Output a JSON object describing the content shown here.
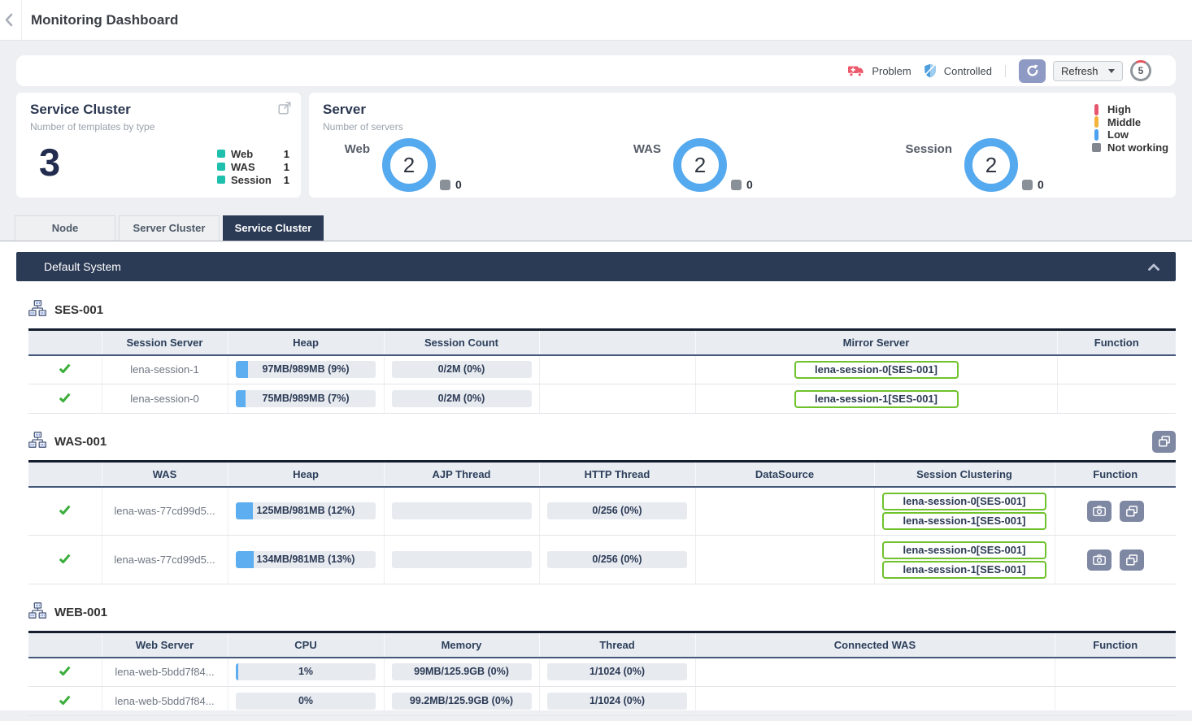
{
  "header": {
    "title": "Monitoring Dashboard"
  },
  "toolbar": {
    "problem_label": "Problem",
    "controlled_label": "Controlled",
    "refresh_label": "Refresh",
    "countdown": "5"
  },
  "service_cluster_card": {
    "title": "Service Cluster",
    "subtitle": "Number of templates by type",
    "total": "3",
    "accent": "#1fbfae",
    "legend": [
      {
        "label": "Web",
        "value": "1"
      },
      {
        "label": "WAS",
        "value": "1"
      },
      {
        "label": "Session",
        "value": "1"
      }
    ]
  },
  "server_card": {
    "title": "Server",
    "subtitle": "Number of servers",
    "gauges": [
      {
        "label": "Web",
        "value": "2",
        "not_working": "0"
      },
      {
        "label": "WAS",
        "value": "2",
        "not_working": "0"
      },
      {
        "label": "Session",
        "value": "2",
        "not_working": "0"
      }
    ],
    "legend": [
      {
        "label": "High",
        "color": "#e8566e"
      },
      {
        "label": "Middle",
        "color": "#f3b23a"
      },
      {
        "label": "Low",
        "color": "#4da2f0"
      },
      {
        "label": "Not working",
        "color": "#82878f"
      }
    ]
  },
  "tabs": [
    {
      "label": "Node",
      "active": false
    },
    {
      "label": "Server Cluster",
      "active": false
    },
    {
      "label": "Service Cluster",
      "active": true
    }
  ],
  "system_bar": {
    "title": "Default System"
  },
  "sections": [
    {
      "title": "SES-001",
      "columns": [
        "",
        "Session Server",
        "Heap",
        "Session Count",
        "",
        "Mirror Server",
        "Function"
      ],
      "rows": [
        {
          "name": "lena-session-1",
          "heap": {
            "text": "97MB/989MB (9%)",
            "pct": 9
          },
          "session_count": "0/2M (0%)",
          "mirror": "lena-session-0[SES-001]"
        },
        {
          "name": "lena-session-0",
          "heap": {
            "text": "75MB/989MB (7%)",
            "pct": 7
          },
          "session_count": "0/2M (0%)",
          "mirror": "lena-session-1[SES-001]"
        }
      ]
    },
    {
      "title": "WAS-001",
      "columns": [
        "",
        "WAS",
        "Heap",
        "AJP Thread",
        "HTTP Thread",
        "DataSource",
        "Session Clustering",
        "Function"
      ],
      "rows": [
        {
          "name": "lena-was-77cd99d5...",
          "heap": {
            "text": "125MB/981MB (12%)",
            "pct": 12
          },
          "ajp": "",
          "http": "0/256 (0%)",
          "datasource": "",
          "clustering": [
            "lena-session-0[SES-001]",
            "lena-session-1[SES-001]"
          ]
        },
        {
          "name": "lena-was-77cd99d5...",
          "heap": {
            "text": "134MB/981MB (13%)",
            "pct": 13
          },
          "ajp": "",
          "http": "0/256 (0%)",
          "datasource": "",
          "clustering": [
            "lena-session-0[SES-001]",
            "lena-session-1[SES-001]"
          ]
        }
      ]
    },
    {
      "title": "WEB-001",
      "columns": [
        "",
        "Web Server",
        "CPU",
        "Memory",
        "Thread",
        "Connected WAS",
        "Function"
      ],
      "rows": [
        {
          "name": "lena-web-5bdd7f84...",
          "cpu": {
            "text": "1%",
            "pct": 1
          },
          "memory": "99MB/125.9GB (0%)",
          "thread": "1/1024 (0%)",
          "connected_was": ""
        },
        {
          "name": "lena-web-5bdd7f84...",
          "cpu": {
            "text": "0%",
            "pct": 0
          },
          "memory": "99.2MB/125.9GB (0%)",
          "thread": "1/1024 (0%)",
          "connected_was": ""
        }
      ]
    }
  ],
  "colors": {
    "accent_navy": "#2b3a55",
    "donut_blue": "#55a9ee",
    "teal": "#1fbfae",
    "bar_fill_blue": "#5caef0",
    "pill_green_border": "#6fc22b",
    "check_green": "#3cae3c",
    "function_button_gray": "#7f88a3",
    "problem_red": "#ec5a6c",
    "controlled_blue": "#4f9fdd"
  }
}
